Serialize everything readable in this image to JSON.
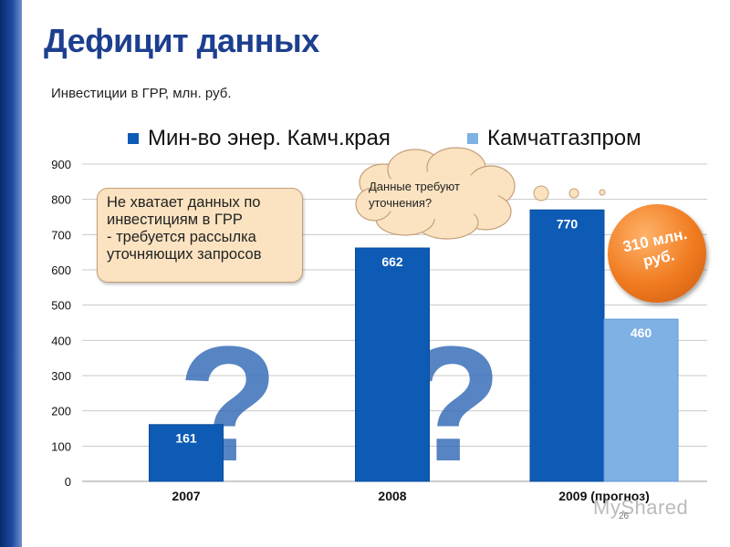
{
  "slide": {
    "title": "Дефицит данных",
    "subtitle": "Инвестиции в ГРР, млн. руб.",
    "page_number": "26",
    "watermark": "MyShared"
  },
  "callout": {
    "text": "Не хватает данных по\nинвестициям в ГРР\n- требуется рассылка\nуточняющих запросов"
  },
  "cloud": {
    "text": "Данные требуют\nуточнения?"
  },
  "badge": {
    "text": "310 млн.\nруб."
  },
  "colors": {
    "series_dark": "#0d5bb5",
    "series_light": "#7fb1e5",
    "question_mark": "#3a6fb8",
    "title": "#1d3f8f"
  },
  "chart_data": {
    "type": "bar",
    "categories": [
      "2007",
      "2008",
      "2009 (прогноз)"
    ],
    "series": [
      {
        "name": "Мин-во энер. Камч.края",
        "values": [
          161,
          662,
          770
        ],
        "labels": [
          "161",
          "662",
          "770"
        ]
      },
      {
        "name": "Камчатгазпром",
        "values": [
          null,
          null,
          460
        ],
        "labels": [
          "",
          "",
          "460"
        ]
      }
    ],
    "ylim": [
      0,
      900
    ],
    "yticks": [
      0,
      100,
      200,
      300,
      400,
      500,
      600,
      700,
      800,
      900
    ],
    "ytick_labels": [
      "0",
      "100",
      "200",
      "300",
      "400",
      "500",
      "600",
      "700",
      "800",
      "900"
    ],
    "grid": true,
    "legend": "top",
    "annotations": [
      "?",
      "?"
    ]
  }
}
